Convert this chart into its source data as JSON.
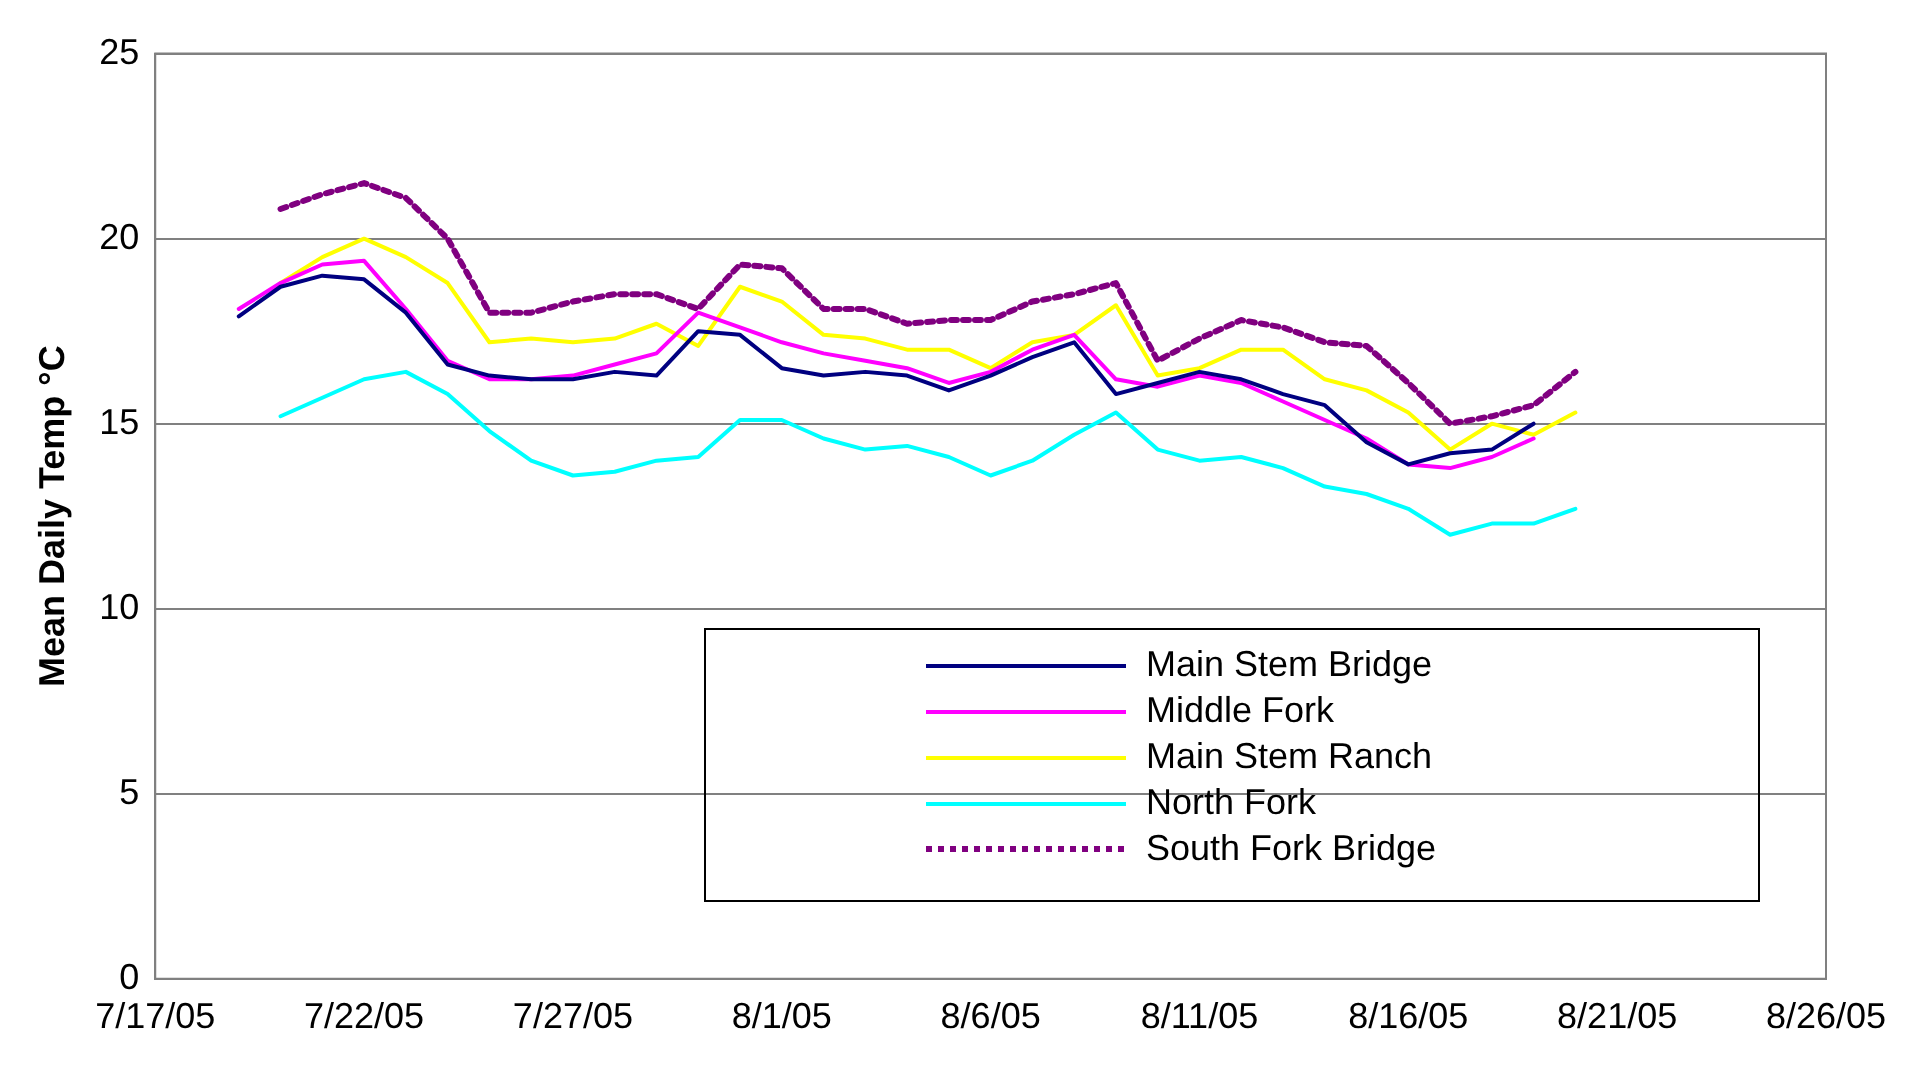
{
  "chart_data": {
    "type": "line",
    "ylabel": "Mean Daily Temp °C",
    "x": [
      "--07-19",
      "--07-20",
      "--07-21",
      "--07-22",
      "--07-23",
      "--07-24",
      "--07-25",
      "--07-26",
      "--07-27",
      "--07-28",
      "--07-29",
      "--07-30",
      "--07-31",
      "--08-01",
      "--08-02",
      "--08-03",
      "--08-04",
      "--08-05",
      "--08-06",
      "--08-07",
      "--08-08",
      "--08-09",
      "--08-10",
      "--08-11",
      "--08-12",
      "--08-13",
      "--08-14",
      "--08-15",
      "--08-16",
      "--08-17",
      "--08-18",
      "--08-19",
      "--08-20"
    ],
    "series": [
      {
        "name": "Main Stem Bridge",
        "color": "#000080",
        "line_style": "solid",
        "values": [
          17.9,
          18.7,
          19.0,
          18.9,
          18.0,
          16.6,
          16.3,
          16.2,
          16.2,
          16.4,
          16.3,
          17.5,
          17.4,
          16.5,
          16.3,
          16.4,
          16.3,
          15.9,
          16.3,
          16.8,
          17.2,
          15.8,
          16.1,
          16.4,
          16.2,
          15.8,
          15.5,
          14.5,
          13.9,
          14.2,
          14.3,
          15.0,
          null
        ]
      },
      {
        "name": "Middle Fork",
        "color": "#ff00ff",
        "line_style": "solid",
        "values": [
          18.1,
          18.8,
          19.3,
          19.4,
          18.1,
          16.7,
          16.2,
          16.2,
          16.3,
          16.6,
          16.9,
          18.0,
          17.6,
          17.2,
          16.9,
          16.7,
          16.5,
          16.1,
          16.4,
          17.0,
          17.4,
          16.2,
          16.0,
          16.3,
          16.1,
          15.6,
          15.1,
          14.6,
          13.9,
          13.8,
          14.1,
          14.6,
          null
        ]
      },
      {
        "name": "Main Stem Ranch",
        "color": "#ffff00",
        "line_style": "solid",
        "values": [
          null,
          18.8,
          19.5,
          20.0,
          19.5,
          18.8,
          17.2,
          17.3,
          17.2,
          17.3,
          17.7,
          17.1,
          18.7,
          18.3,
          17.4,
          17.3,
          17.0,
          17.0,
          16.5,
          17.2,
          17.4,
          18.2,
          16.3,
          16.5,
          17.0,
          17.0,
          16.2,
          15.9,
          15.3,
          14.3,
          15.0,
          14.7,
          15.3
        ]
      },
      {
        "name": "North Fork",
        "color": "#00ffff",
        "line_style": "solid",
        "values": [
          null,
          15.2,
          15.7,
          16.2,
          16.4,
          15.8,
          14.8,
          14.0,
          13.6,
          13.7,
          14.0,
          14.1,
          15.1,
          15.1,
          14.6,
          14.3,
          14.4,
          14.1,
          13.6,
          14.0,
          14.7,
          15.3,
          14.3,
          14.0,
          14.1,
          13.8,
          13.3,
          13.1,
          12.7,
          12.0,
          12.3,
          12.3,
          12.7
        ]
      },
      {
        "name": "South Fork Bridge",
        "color": "#800080",
        "line_style": "dotted",
        "values": [
          null,
          20.8,
          21.2,
          21.5,
          21.1,
          20.0,
          18.0,
          18.0,
          18.3,
          18.5,
          18.5,
          18.1,
          19.3,
          19.2,
          18.1,
          18.1,
          17.7,
          17.8,
          17.8,
          18.3,
          18.5,
          18.8,
          16.7,
          17.3,
          17.8,
          17.6,
          17.2,
          17.1,
          16.1,
          15.0,
          15.2,
          15.5,
          16.4
        ]
      }
    ],
    "xlim": [
      "--07-17",
      "--08-26"
    ],
    "xticks": [
      {
        "value": "--07-17",
        "label": "7/17/05"
      },
      {
        "value": "--07-22",
        "label": "7/22/05"
      },
      {
        "value": "--07-27",
        "label": "7/27/05"
      },
      {
        "value": "--08-01",
        "label": "8/1/05"
      },
      {
        "value": "--08-06",
        "label": "8/6/05"
      },
      {
        "value": "--08-11",
        "label": "8/11/05"
      },
      {
        "value": "--08-16",
        "label": "8/16/05"
      },
      {
        "value": "--08-21",
        "label": "8/21/05"
      },
      {
        "value": "--08-26",
        "label": "8/26/05"
      }
    ],
    "ylim": [
      0,
      25
    ],
    "yticks": [
      0,
      5,
      10,
      15,
      20,
      25
    ],
    "grid": "y",
    "legend": "bottom right",
    "marker": "none"
  }
}
